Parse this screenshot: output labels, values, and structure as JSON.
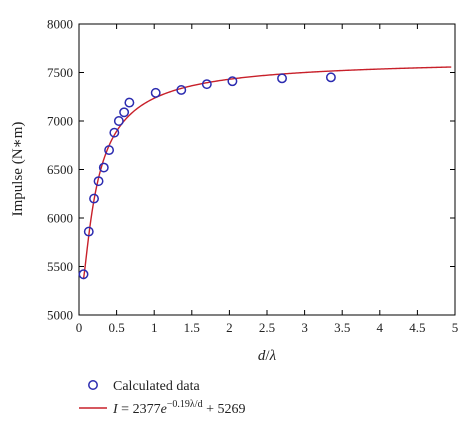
{
  "chart_data": {
    "type": "scatter",
    "title": "",
    "xlabel": "d/λ",
    "ylabel": "Impulse (N∗m)",
    "xlim": [
      0,
      5
    ],
    "ylim": [
      5000,
      8000
    ],
    "x_ticks": [
      0,
      0.5,
      1,
      1.5,
      2,
      2.5,
      3,
      3.5,
      4,
      4.5,
      5
    ],
    "x_tick_labels": [
      "0",
      "0.5",
      "1",
      "1.5",
      "2",
      "2.5",
      "3",
      "3.5",
      "4",
      "4.5",
      "5"
    ],
    "y_ticks": [
      5000,
      5500,
      6000,
      6500,
      7000,
      7500,
      8000
    ],
    "y_tick_labels": [
      "5000",
      "5500",
      "6000",
      "6500",
      "7000",
      "7500",
      "8000"
    ],
    "grid": false,
    "legend_position": "bottom",
    "series": [
      {
        "name": "Calculated data",
        "kind": "scatter",
        "marker": "open-circle",
        "color": "#2b2bb0",
        "x": [
          0.06,
          0.13,
          0.2,
          0.26,
          0.33,
          0.4,
          0.47,
          0.53,
          0.6,
          0.67,
          1.02,
          1.36,
          1.7,
          2.04,
          2.7,
          3.35
        ],
        "y": [
          5420,
          5860,
          6200,
          6380,
          6520,
          6700,
          6880,
          7000,
          7090,
          7190,
          7290,
          7320,
          7380,
          7410,
          7440,
          7450
        ]
      },
      {
        "name": "I = 2377e^(−0.19λ/d) + 5269",
        "kind": "line",
        "color": "#c8202a",
        "formula": {
          "a": 2377,
          "b": -0.19,
          "c": 5269
        },
        "x_range": [
          0.06,
          4.95
        ]
      }
    ]
  },
  "legend": {
    "scatter_label": "Calculated data",
    "line_label_parts": {
      "lhs": "I",
      "eq": " = 2377",
      "e": "e",
      "exp": "−0.19λ/d",
      "tail": " + 5269"
    }
  },
  "x_title_parts": {
    "a": "d",
    "sep": "/",
    "b": "λ"
  }
}
